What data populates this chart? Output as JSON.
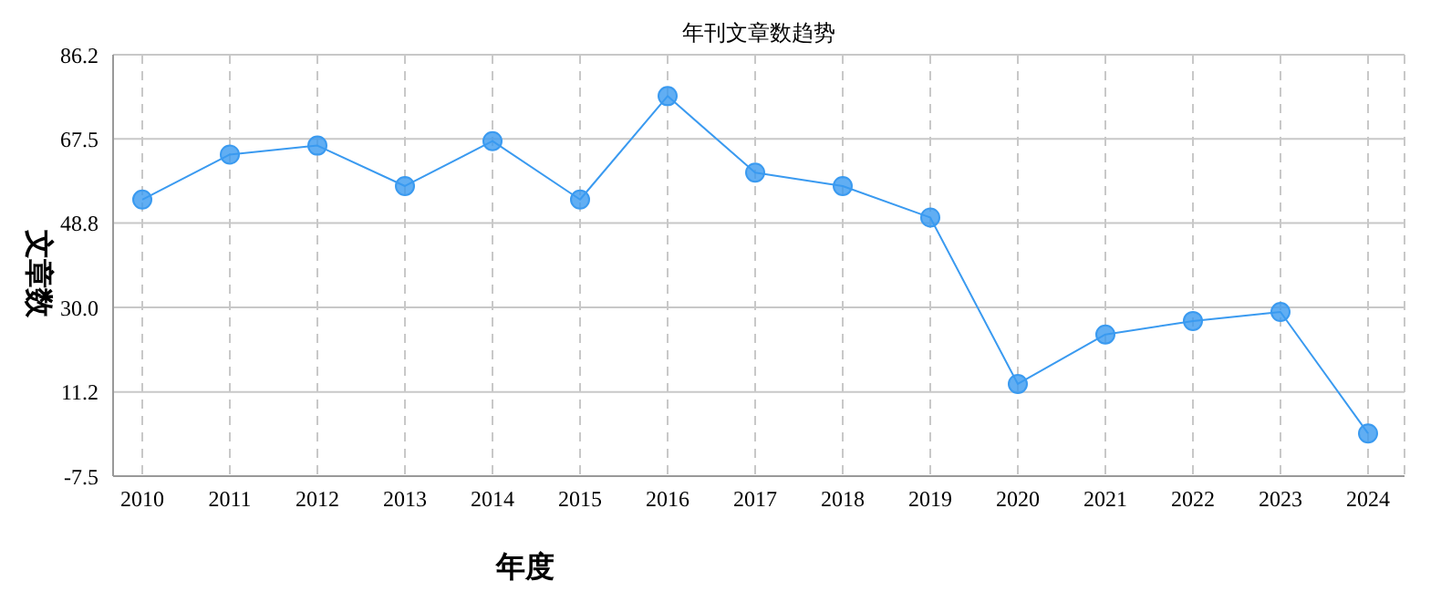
{
  "chart_data": {
    "type": "line",
    "title": "年刊文章数趋势",
    "xlabel": "年度",
    "ylabel": "文章数",
    "categories": [
      "2010",
      "2011",
      "2012",
      "2013",
      "2014",
      "2015",
      "2016",
      "2017",
      "2018",
      "2019",
      "2020",
      "2021",
      "2022",
      "2023",
      "2024"
    ],
    "series": [
      {
        "color": "#3a9af0",
        "values": [
          54,
          64,
          66,
          57,
          67,
          54,
          77,
          60,
          57,
          50,
          13,
          24,
          27,
          29,
          2
        ]
      }
    ],
    "ylim": [
      -7.5,
      86.2
    ],
    "yticks": [
      -7.5,
      11.2,
      {
        "value": 30,
        "label": "30.0"
      },
      48.8,
      67.5,
      86.2
    ],
    "grid": true,
    "legend": false,
    "marker": "circle",
    "line_style": "solid"
  }
}
